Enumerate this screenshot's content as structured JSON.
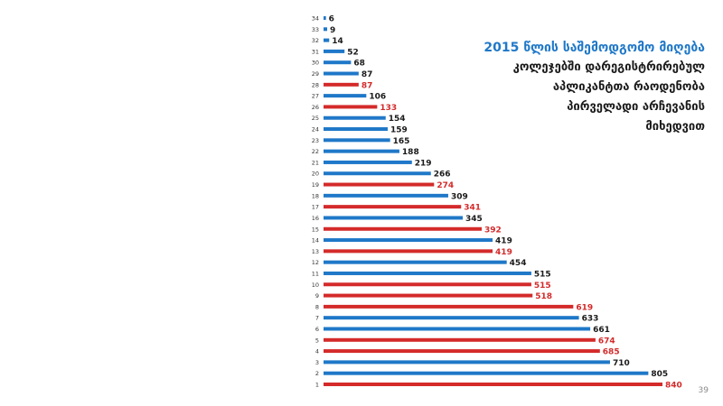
{
  "chart_data": {
    "type": "bar",
    "orientation": "horizontal",
    "title": [
      "2015 წლის საშემოდგომო მიღება",
      "კოლეჯებში დარეგისტრირებულ",
      "აპლიკანტთა რაოდენობა",
      "პირველადი არჩევანის",
      "მიხედვით"
    ],
    "categories": [
      "1",
      "2",
      "3",
      "4",
      "5",
      "6",
      "7",
      "8",
      "9",
      "10",
      "11",
      "12",
      "13",
      "14",
      "15",
      "16",
      "17",
      "18",
      "19",
      "20",
      "21",
      "22",
      "23",
      "24",
      "25",
      "26",
      "27",
      "28",
      "29",
      "30",
      "31",
      "32",
      "33",
      "34"
    ],
    "values": [
      840,
      805,
      710,
      685,
      674,
      661,
      633,
      619,
      518,
      515,
      515,
      454,
      419,
      419,
      392,
      345,
      341,
      309,
      274,
      266,
      219,
      188,
      165,
      159,
      154,
      133,
      106,
      87,
      87,
      68,
      52,
      14,
      9,
      6
    ],
    "bar_colors": [
      "red",
      "blue",
      "blue",
      "red",
      "red",
      "blue",
      "blue",
      "red",
      "red",
      "red",
      "blue",
      "blue",
      "red",
      "blue",
      "red",
      "blue",
      "red",
      "blue",
      "red",
      "blue",
      "blue",
      "blue",
      "blue",
      "blue",
      "blue",
      "red",
      "blue",
      "red",
      "blue",
      "blue",
      "blue",
      "blue",
      "blue",
      "blue"
    ],
    "colors": {
      "blue": "#1f78c8",
      "red": "#d42a2a",
      "label_blue": "#1a1a1a",
      "label_red": "#d42a2a"
    },
    "xlim": [
      0,
      840
    ],
    "grid": false,
    "legend": "none"
  },
  "page_number": "39"
}
